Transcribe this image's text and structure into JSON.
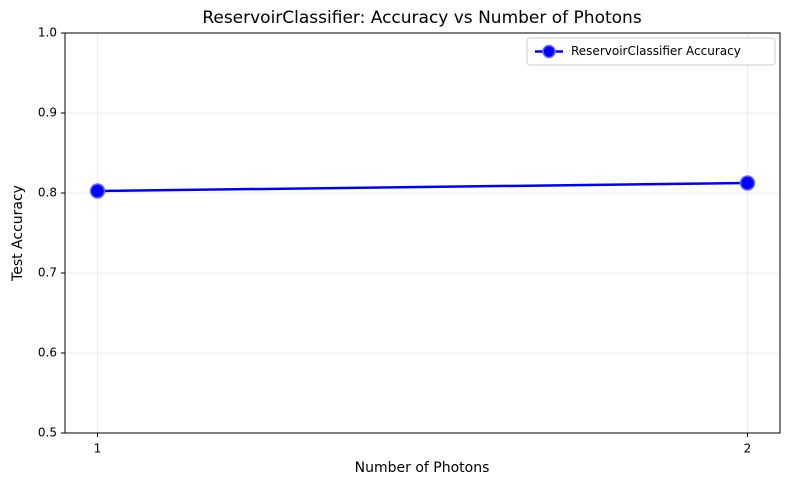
{
  "chart_data": {
    "type": "line",
    "title": "ReservoirClassifier: Accuracy vs Number of Photons",
    "x_label": "Number of Photons",
    "y_label": "Test Accuracy",
    "x": [
      1,
      2
    ],
    "series": [
      {
        "name": "ReservoirClassifier Accuracy",
        "color": "#0000ff",
        "values": [
          0.8025,
          0.8125
        ]
      }
    ],
    "xlim": [
      0.95,
      2.05
    ],
    "xticks": [
      1,
      2
    ],
    "ylim": [
      0.5,
      1.0
    ],
    "yticks": [
      0.5,
      0.6,
      0.7,
      0.8,
      0.9,
      {
        "value": 1.0,
        "label": "1.0"
      }
    ],
    "grid": true,
    "legend": "upper right"
  }
}
